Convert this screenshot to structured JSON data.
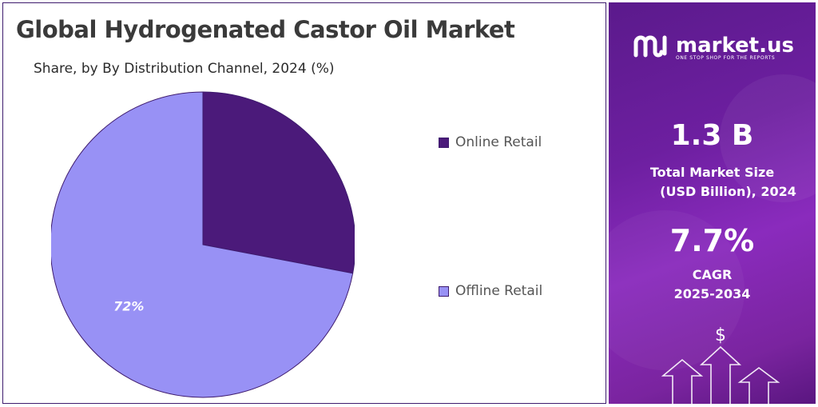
{
  "title": "Global Hydrogenated Castor Oil Market",
  "subtitle": "Share, by By Distribution Channel, 2024 (%)",
  "chart_data": {
    "type": "pie",
    "slices": [
      {
        "label": "Online Retail",
        "value": 28,
        "color": "#4b1a7a",
        "data_label": ""
      },
      {
        "label": "Offline Retail",
        "value": 72,
        "color": "#9891f5",
        "data_label": "72%"
      }
    ],
    "legend": [
      "Online Retail",
      "Offline Retail"
    ],
    "legend_position": "right"
  },
  "sidebar": {
    "brand_name": "market.us",
    "brand_tagline": "ONE STOP SHOP FOR THE REPORTS",
    "brand_icon": "market-us-logo",
    "market_size_value": "1.3 B",
    "market_size_label_line1": "Total Market Size",
    "market_size_label_line2": "(USD Billion), 2024",
    "cagr_value": "7.7%",
    "cagr_label_line1": "CAGR",
    "cagr_label_line2": "2025-2034",
    "currency_symbol": "$",
    "background_color": "#6d1fa0"
  }
}
